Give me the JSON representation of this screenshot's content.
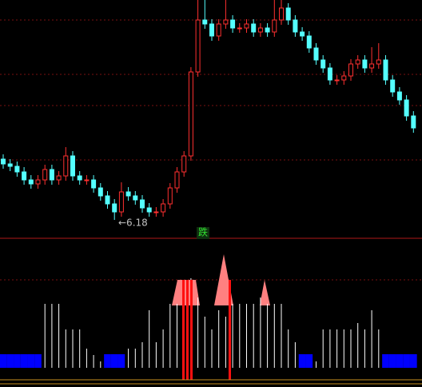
{
  "chart_data": [
    {
      "type": "candlestick",
      "annotation": "←6.18",
      "up_color": "#ff3030",
      "down_color": "#54ffff",
      "ylim": [
        5.72,
        11.68
      ],
      "open": [
        7.7,
        7.58,
        7.52,
        7.38,
        7.18,
        7.08,
        7.18,
        7.44,
        7.18,
        7.28,
        7.78,
        7.28,
        7.18,
        7.18,
        6.98,
        6.78,
        6.58,
        6.38,
        6.88,
        6.78,
        6.68,
        6.48,
        6.38,
        6.38,
        6.58,
        6.98,
        7.38,
        7.78,
        9.88,
        11.18,
        11.08,
        10.78,
        11.08,
        11.18,
        10.98,
        10.98,
        11.08,
        10.88,
        10.98,
        10.88,
        11.18,
        11.48,
        11.18,
        10.88,
        10.78,
        10.48,
        10.18,
        9.98,
        9.68,
        9.68,
        9.78,
        10.08,
        10.18,
        9.98,
        10.08,
        10.18,
        9.68,
        9.38,
        9.18,
        8.78
      ],
      "close": [
        7.58,
        7.52,
        7.38,
        7.18,
        7.08,
        7.18,
        7.44,
        7.18,
        7.28,
        7.78,
        7.28,
        7.18,
        7.18,
        6.98,
        6.78,
        6.58,
        6.38,
        6.88,
        6.78,
        6.68,
        6.48,
        6.38,
        6.38,
        6.58,
        6.98,
        7.38,
        7.78,
        9.88,
        11.18,
        11.08,
        10.78,
        11.08,
        11.18,
        10.98,
        10.98,
        11.08,
        10.88,
        10.98,
        10.88,
        11.18,
        11.48,
        11.18,
        10.88,
        10.78,
        10.48,
        10.18,
        9.98,
        9.68,
        9.68,
        9.78,
        10.08,
        10.18,
        9.98,
        10.08,
        10.18,
        9.68,
        9.38,
        9.18,
        8.78,
        8.48
      ],
      "high": [
        7.82,
        7.7,
        7.64,
        7.5,
        7.3,
        7.3,
        7.56,
        7.56,
        7.4,
        8.0,
        7.9,
        7.4,
        7.3,
        7.3,
        7.1,
        6.9,
        6.7,
        7.12,
        7.0,
        6.9,
        6.8,
        6.6,
        6.5,
        6.7,
        7.1,
        7.5,
        7.9,
        10.0,
        11.8,
        11.7,
        11.2,
        11.2,
        11.7,
        11.3,
        11.1,
        11.2,
        11.2,
        11.1,
        11.1,
        11.7,
        11.7,
        11.6,
        11.3,
        11.0,
        10.9,
        10.6,
        10.3,
        10.1,
        9.8,
        9.9,
        10.2,
        10.3,
        10.3,
        10.5,
        10.6,
        10.3,
        9.8,
        9.5,
        9.3,
        8.9
      ],
      "low": [
        7.46,
        7.4,
        7.26,
        7.06,
        6.96,
        6.96,
        7.06,
        7.06,
        7.06,
        7.16,
        7.16,
        7.06,
        7.06,
        6.86,
        6.66,
        6.46,
        6.18,
        6.26,
        6.66,
        6.56,
        6.36,
        6.26,
        6.26,
        6.26,
        6.46,
        6.86,
        7.26,
        7.66,
        9.76,
        10.96,
        10.66,
        10.66,
        10.96,
        10.86,
        10.86,
        10.86,
        10.76,
        10.76,
        10.76,
        10.76,
        11.06,
        11.06,
        10.76,
        10.66,
        10.36,
        10.06,
        9.86,
        9.56,
        9.56,
        9.56,
        9.66,
        9.96,
        9.86,
        9.86,
        9.96,
        9.56,
        9.26,
        9.06,
        8.66,
        8.36
      ]
    },
    {
      "type": "indicator",
      "signal": "跌",
      "bar_color": "#ffffff",
      "zero_color": "#0000ff",
      "ylim": [
        0,
        100
      ],
      "values": [
        0,
        0,
        0,
        0,
        0,
        0,
        50,
        50,
        50,
        30,
        30,
        30,
        15,
        10,
        5,
        0,
        0,
        0,
        15,
        15,
        20,
        45,
        20,
        30,
        50,
        50,
        60,
        70,
        55,
        40,
        30,
        45,
        40,
        50,
        50,
        50,
        50,
        55,
        50,
        50,
        50,
        30,
        20,
        0,
        0,
        5,
        30,
        30,
        30,
        30,
        30,
        35,
        30,
        45,
        30,
        0,
        0,
        0,
        0,
        0
      ]
    }
  ]
}
